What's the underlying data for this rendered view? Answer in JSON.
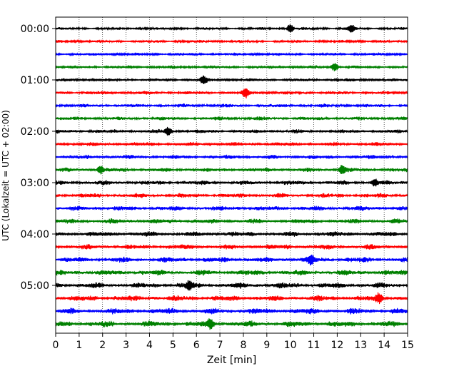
{
  "chart_data": {
    "type": "line",
    "subtype": "helicorder",
    "xlabel": "Zeit  [min]",
    "ylabel": "UTC (Lokalzeit = UTC + 02:00)",
    "xlim": [
      0,
      15
    ],
    "x_ticks": [
      0,
      1,
      2,
      3,
      4,
      5,
      6,
      7,
      8,
      9,
      10,
      11,
      12,
      13,
      14,
      15
    ],
    "y_tick_labels": [
      "00:00",
      "01:00",
      "02:00",
      "03:00",
      "04:00",
      "05:00"
    ],
    "row_interval_min": 15,
    "trace_count": 24,
    "trace_colors": [
      "#000000",
      "#ff0000",
      "#0000ff",
      "#008000"
    ],
    "grid": "vertical dotted at each minute",
    "notable_bursts": [
      {
        "row": 0,
        "x_min": 10.0
      },
      {
        "row": 0,
        "x_min": 12.6
      },
      {
        "row": 3,
        "x_min": 11.9
      },
      {
        "row": 4,
        "x_min": 6.3
      },
      {
        "row": 5,
        "x_min": 8.1
      },
      {
        "row": 8,
        "x_min": 4.8
      },
      {
        "row": 11,
        "x_min": 1.9
      },
      {
        "row": 11,
        "x_min": 12.2
      },
      {
        "row": 12,
        "x_min": 13.6
      },
      {
        "row": 18,
        "x_min": 10.9
      },
      {
        "row": 20,
        "x_min": 5.7
      },
      {
        "row": 21,
        "x_min": 13.8
      },
      {
        "row": 23,
        "x_min": 6.6
      }
    ]
  }
}
